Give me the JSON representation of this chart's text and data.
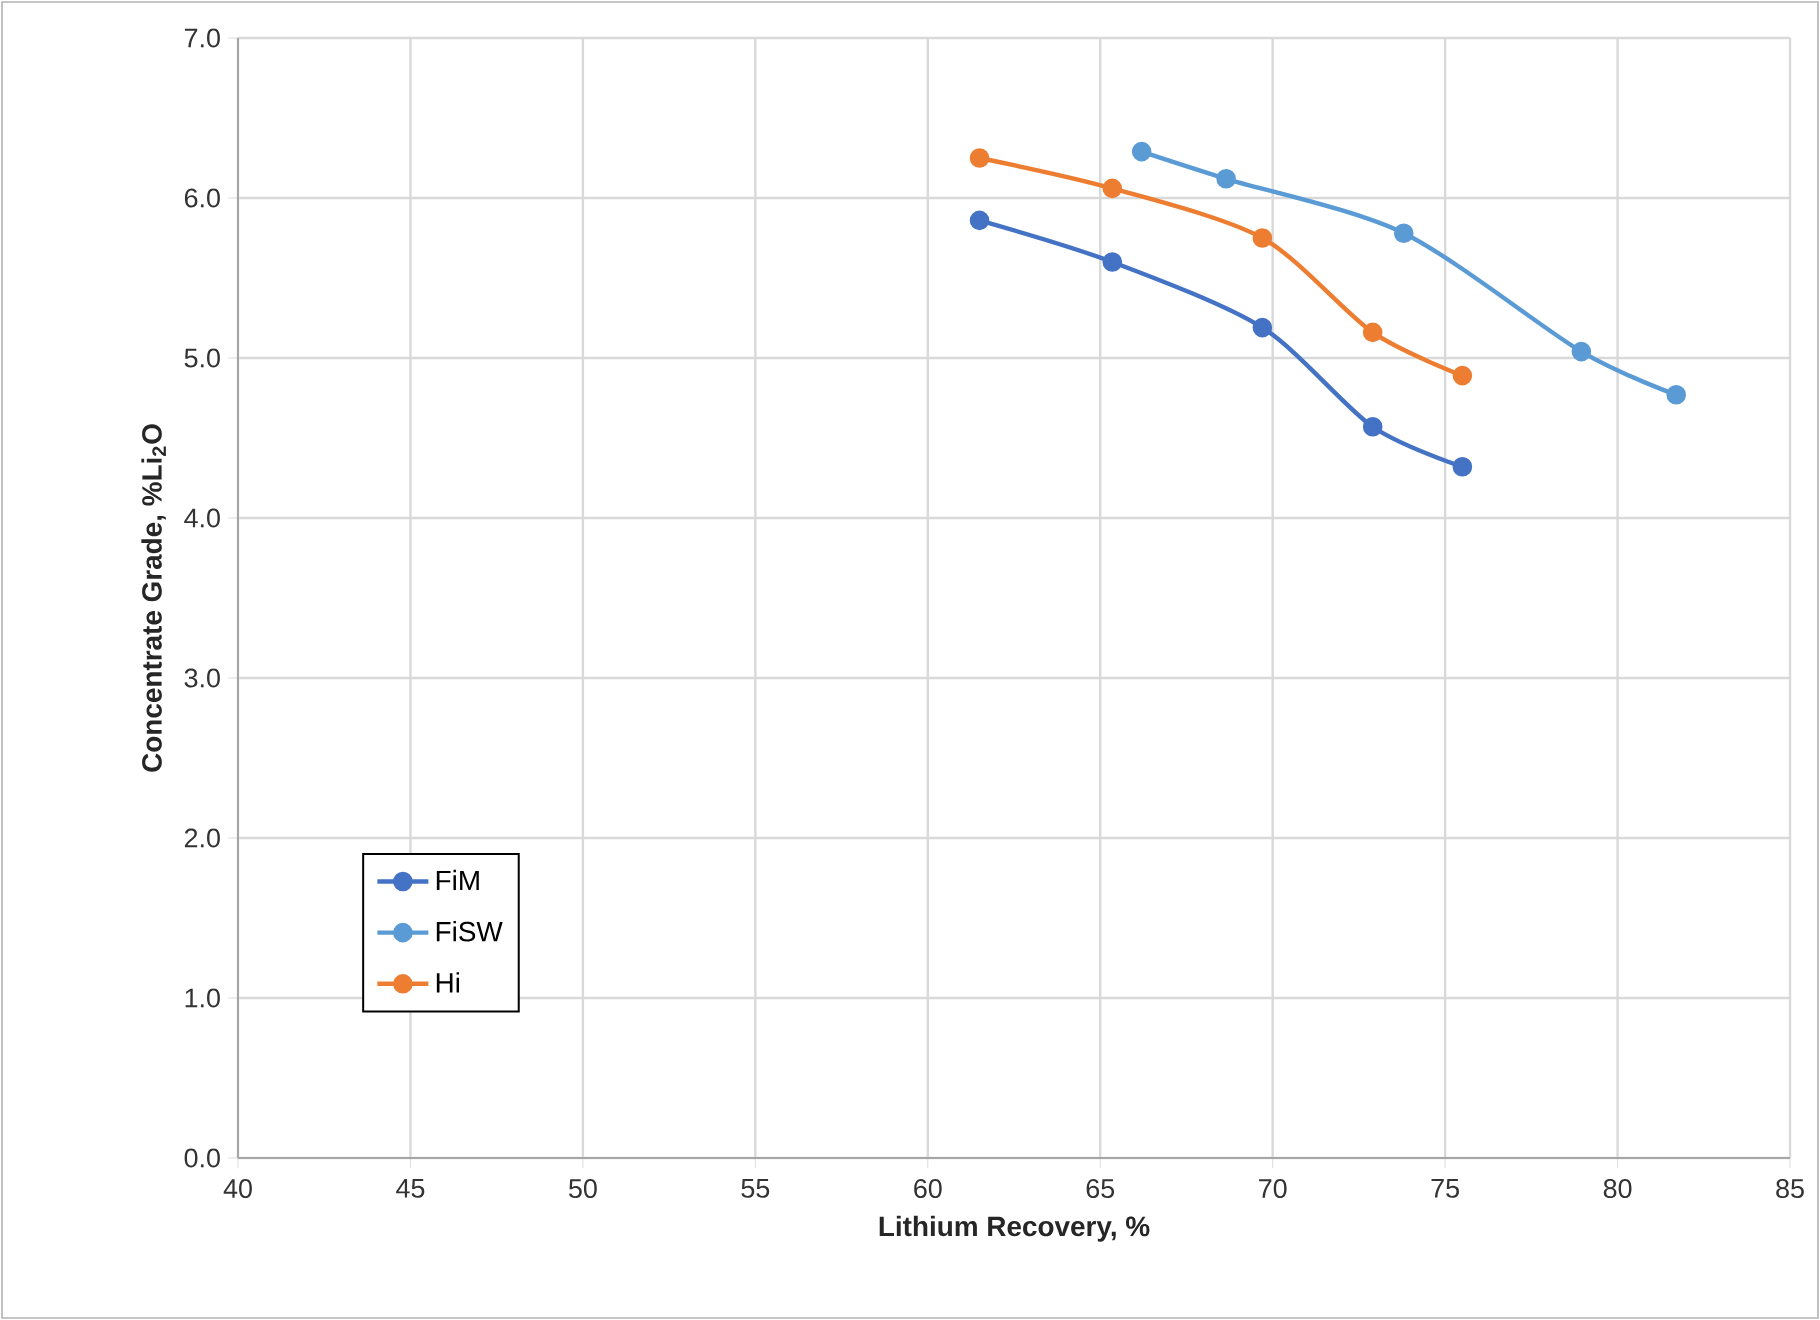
{
  "chart_data": {
    "type": "line",
    "xlabel": "Lithium Recovery, %",
    "ylabel": "Concentrate Grade, %Li$_{2}$O",
    "xlim": [
      40,
      85
    ],
    "xticks": [
      40,
      45,
      50,
      55,
      60,
      65,
      70,
      75,
      80,
      85
    ],
    "ylim": [
      0,
      7
    ],
    "yticks": [
      {
        "value": 0,
        "label": "0.0"
      },
      {
        "value": 1,
        "label": "1.0"
      },
      {
        "value": 2,
        "label": "2.0"
      },
      {
        "value": 3,
        "label": "3.0"
      },
      {
        "value": 4,
        "label": "4.0"
      },
      {
        "value": 5,
        "label": "5.0"
      },
      {
        "value": 6,
        "label": "6.0"
      },
      {
        "value": 7,
        "label": "7.0"
      }
    ],
    "grid": true,
    "legend": "bottom left",
    "marker": "circle",
    "line_style": "solid",
    "series": [
      {
        "name": "FiM",
        "color": "#4472c4",
        "x": [
          61.5,
          65.35,
          69.7,
          72.9,
          75.5
        ],
        "values": [
          5.86,
          5.6,
          5.19,
          4.57,
          4.32
        ]
      },
      {
        "name": "FiSW",
        "color": "#5b9bd5",
        "x": [
          66.2,
          68.65,
          73.8,
          78.95,
          81.7
        ],
        "values": [
          6.29,
          6.12,
          5.78,
          5.04,
          4.77
        ]
      },
      {
        "name": "Hi",
        "color": "#ed7d31",
        "x": [
          61.5,
          65.35,
          69.7,
          72.9,
          75.5
        ],
        "values": [
          6.25,
          6.06,
          5.75,
          5.16,
          4.89
        ]
      }
    ]
  }
}
